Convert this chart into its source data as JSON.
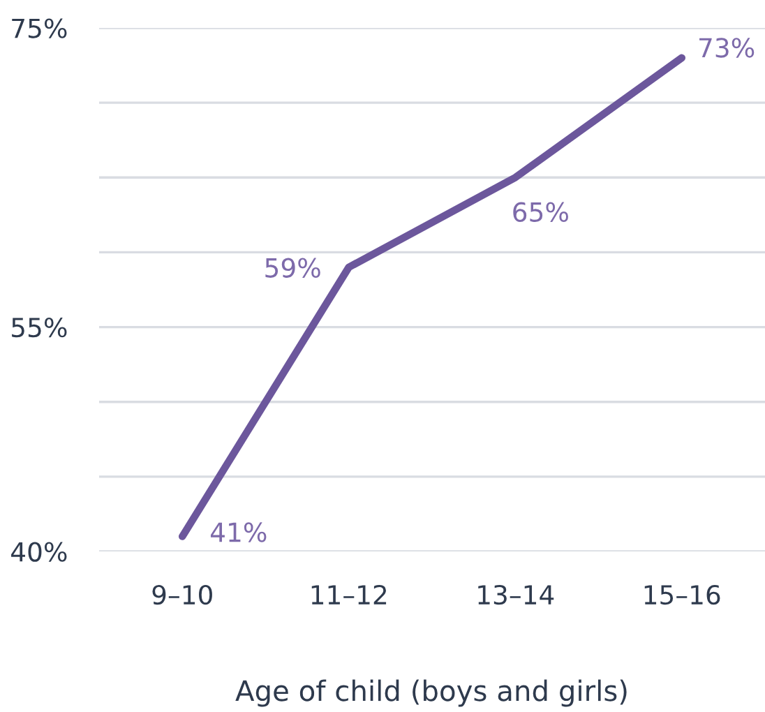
{
  "chart_data": {
    "type": "line",
    "xlabel": "Age of child (boys and girls)",
    "categories": [
      "9–10",
      "11–12",
      "13–14",
      "15–16"
    ],
    "series": [
      {
        "color": "#6c579c",
        "values": [
          41,
          59,
          65,
          73
        ],
        "value_labels": [
          "41%",
          "59%",
          "65%",
          "73%"
        ]
      }
    ],
    "ylim": [
      40,
      75
    ],
    "yticks": [
      {
        "value": 40,
        "label": "40%"
      },
      {
        "value": 45,
        "label": null
      },
      {
        "value": 50,
        "label": null
      },
      {
        "value": 55,
        "label": "55%"
      },
      {
        "value": 60,
        "label": null
      },
      {
        "value": 65,
        "label": null
      },
      {
        "value": 70,
        "label": null
      },
      {
        "value": 75,
        "label": "75%"
      }
    ],
    "grid": "y",
    "marker": "none",
    "line_style": "solid"
  }
}
